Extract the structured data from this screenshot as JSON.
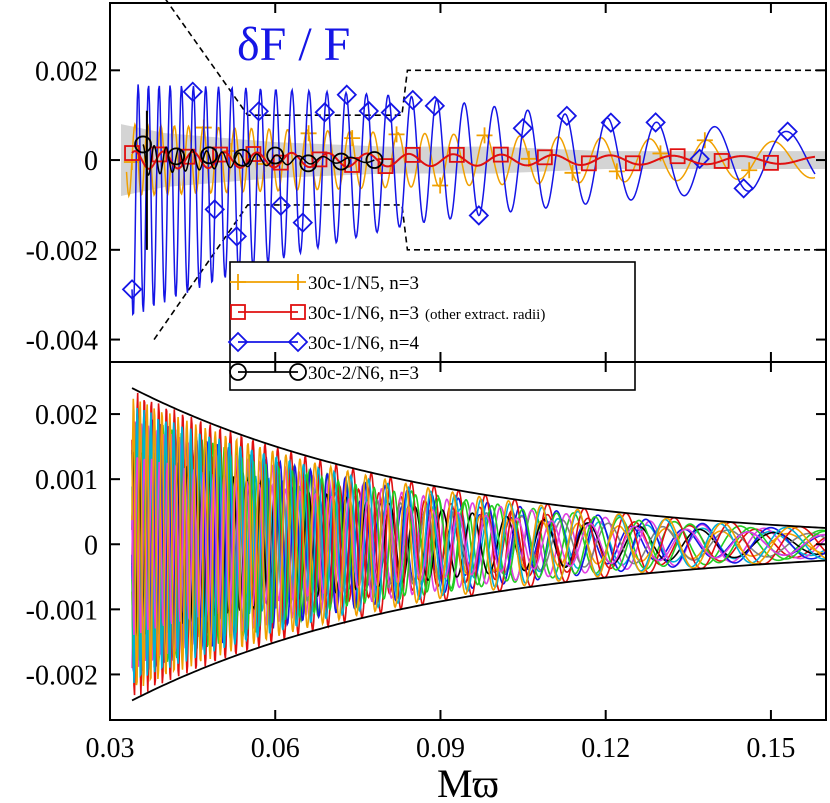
{
  "chart_data": [
    {
      "id": "top",
      "type": "line",
      "xlim": [
        0.03,
        0.16
      ],
      "ylim": [
        -0.0045,
        0.0035
      ],
      "yticks": [
        -0.004,
        -0.002,
        0,
        0.002
      ],
      "ytick_labels": [
        "-0.004",
        "-0.002",
        "0",
        "0.002"
      ],
      "grid": false,
      "legend_placement": "bottom-center",
      "annotation": "δF / F",
      "annotation_color": "#1515e6",
      "band": {
        "color": "#d4d4d4",
        "x": [
          0.032,
          0.04,
          0.05,
          0.06,
          0.08,
          0.1,
          0.12,
          0.14,
          0.16
        ],
        "upper": [
          0.0008,
          0.0006,
          0.0005,
          0.0004,
          0.0003,
          0.0003,
          0.0002,
          0.0002,
          0.0002
        ],
        "lower": [
          -0.0008,
          -0.0006,
          -0.0005,
          -0.0004,
          -0.0003,
          -0.0003,
          -0.0002,
          -0.0002,
          -0.0002
        ]
      },
      "envelope_dashed": {
        "color": "#000000",
        "upper": {
          "x": [
            0.04,
            0.055,
            0.083,
            0.084,
            0.16
          ],
          "y": [
            0.0036,
            0.001,
            0.001,
            0.002,
            0.002
          ]
        },
        "lower": {
          "x": [
            0.038,
            0.055,
            0.083,
            0.084,
            0.16
          ],
          "y": [
            -0.004,
            -0.001,
            -0.001,
            -0.002,
            -0.002
          ]
        }
      },
      "series": [
        {
          "name": "30c-1/N5, n=3",
          "color": "#f0a000",
          "marker": "plus",
          "x_start": 0.033,
          "x_end": 0.158,
          "amp_start": 0.0008,
          "amp_end": 0.0004,
          "period_start": 0.0022,
          "period_end": 0.015,
          "marker_x": [
            0.034,
            0.047,
            0.052,
            0.058,
            0.066,
            0.074,
            0.082,
            0.09,
            0.098,
            0.106,
            0.114,
            0.122,
            0.13,
            0.138,
            0.146
          ]
        },
        {
          "name": "30c-1/N6, n=3",
          "note": "(other extract. radii)",
          "color": "#e01010",
          "marker": "square",
          "x_start": 0.034,
          "x_end": 0.158,
          "amp_start": 0.0002,
          "amp_end": 8e-05,
          "period_start": 0.005,
          "period_end": 0.015,
          "marker_x": [
            0.034,
            0.039,
            0.044,
            0.05,
            0.056,
            0.061,
            0.068,
            0.074,
            0.08,
            0.085,
            0.093,
            0.101,
            0.109,
            0.117,
            0.125,
            0.133,
            0.141,
            0.15
          ]
        },
        {
          "name": "30c-1/N6, n=4",
          "color": "#1515e6",
          "marker": "diamond",
          "x_start": 0.034,
          "x_end": 0.158,
          "amp_start": 0.0026,
          "amp_end": 0.0006,
          "period_start": 0.0018,
          "period_end": 0.016,
          "marker_x": [
            0.034,
            0.045,
            0.049,
            0.053,
            0.057,
            0.061,
            0.065,
            0.069,
            0.073,
            0.077,
            0.081,
            0.085,
            0.089,
            0.097,
            0.105,
            0.113,
            0.121,
            0.129,
            0.137,
            0.145,
            0.153
          ]
        },
        {
          "name": "30c-2/N6, n=3",
          "color": "#000000",
          "marker": "circle",
          "x_start": 0.036,
          "x_end": 0.078,
          "amp_start": 0.00035,
          "amp_end": 5e-05,
          "period_start": 0.002,
          "period_end": 0.006,
          "marker_x": [
            0.036,
            0.042,
            0.048,
            0.054,
            0.06,
            0.066,
            0.072,
            0.078
          ]
        }
      ]
    },
    {
      "id": "bottom",
      "type": "line",
      "xlim": [
        0.03,
        0.16
      ],
      "ylim": [
        -0.0027,
        0.0028
      ],
      "xticks": [
        0.03,
        0.06,
        0.09,
        0.12,
        0.15
      ],
      "xtick_labels": [
        "0.03",
        "0.06",
        "0.09",
        "0.12",
        "0.15"
      ],
      "yticks": [
        -0.002,
        -0.001,
        0,
        0.001,
        0.002
      ],
      "ytick_labels": [
        "-0.002",
        "-0.001",
        "0",
        "0.001",
        "0.002"
      ],
      "xlabel": "Mϖ",
      "grid": false,
      "envelope": {
        "color": "#000000",
        "amp_at_start": 0.0024,
        "amp_at_end": 0.00025,
        "x_start": 0.034,
        "x_end": 0.16
      },
      "series_colors": [
        "#1515e6",
        "#e01010",
        "#22cc22",
        "#00b0d8",
        "#e040e0",
        "#f0a000",
        "#000000",
        "#808080"
      ],
      "series_count": 14,
      "x_start": 0.034,
      "x_end": 0.16,
      "period_start": 0.0012,
      "period_end": 0.016
    }
  ],
  "legend": {
    "entries": [
      {
        "label": "30c-1/N5, n=3",
        "note": ""
      },
      {
        "label": "30c-1/N6, n=3",
        "note": "(other extract. radii)"
      },
      {
        "label": "30c-1/N6, n=4",
        "note": ""
      },
      {
        "label": "30c-2/N6, n=3",
        "note": ""
      }
    ]
  }
}
